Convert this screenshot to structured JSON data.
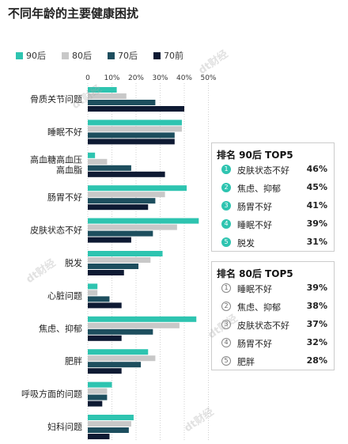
{
  "title": "不同年龄的主要健康困扰",
  "watermark": "dt财经",
  "colors": {
    "s90": "#2ec4b0",
    "s80": "#c8c8c8",
    "s70": "#1d4e5e",
    "s70pre": "#0e1a33",
    "grid": "#d0d0d0"
  },
  "chart_data": {
    "type": "bar",
    "orientation": "horizontal",
    "title": "不同年龄的主要健康困扰",
    "xlim": [
      0,
      50
    ],
    "tick_labels": [
      "0",
      "10%",
      "20%",
      "30%",
      "40%",
      "50%"
    ],
    "grid": true,
    "legend_position": "top",
    "categories": [
      "骨质关节问题",
      "睡眠不好",
      "高血糖高血压\n高血脂",
      "肠胃不好",
      "皮肤状态不好",
      "脱发",
      "心脏问题",
      "焦虑、抑郁",
      "肥胖",
      "呼吸方面的问题",
      "妇科问题"
    ],
    "series": [
      {
        "name": "90后",
        "values": [
          12,
          39,
          3,
          41,
          46,
          31,
          4,
          45,
          25,
          10,
          19
        ]
      },
      {
        "name": "80后",
        "values": [
          16,
          39,
          8,
          32,
          37,
          26,
          4,
          38,
          28,
          8,
          18
        ]
      },
      {
        "name": "70后",
        "values": [
          28,
          36,
          18,
          28,
          27,
          21,
          9,
          27,
          22,
          8,
          17
        ]
      },
      {
        "name": "70前",
        "values": [
          40,
          36,
          32,
          25,
          18,
          15,
          14,
          14,
          14,
          6,
          9
        ]
      }
    ]
  },
  "top5_90": {
    "title": "排名 90后 TOP5",
    "items": [
      {
        "rank": "1",
        "label": "皮肤状态不好",
        "value": "46%"
      },
      {
        "rank": "2",
        "label": "焦虑、抑郁",
        "value": "45%"
      },
      {
        "rank": "3",
        "label": "肠胃不好",
        "value": "41%"
      },
      {
        "rank": "4",
        "label": "睡眠不好",
        "value": "39%"
      },
      {
        "rank": "5",
        "label": "脱发",
        "value": "31%"
      }
    ]
  },
  "top5_80": {
    "title": "排名 80后 TOP5",
    "items": [
      {
        "rank": "1",
        "label": "睡眠不好",
        "value": "39%"
      },
      {
        "rank": "2",
        "label": "焦虑、抑郁",
        "value": "38%"
      },
      {
        "rank": "3",
        "label": "皮肤状态不好",
        "value": "37%"
      },
      {
        "rank": "4",
        "label": "肠胃不好",
        "value": "32%"
      },
      {
        "rank": "5",
        "label": "肥胖",
        "value": "28%"
      }
    ]
  }
}
